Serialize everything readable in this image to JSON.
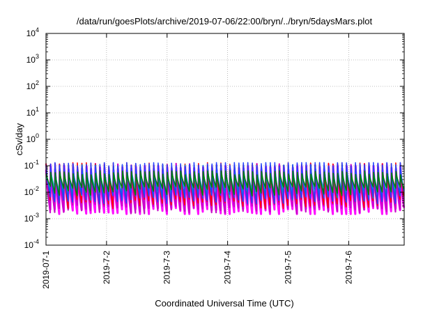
{
  "chart_data": {
    "type": "line",
    "title": "/data/run/goesPlots/archive/2019-07-06/22:00/bryn/../bryn/5daysMars.plot",
    "xlabel": "Coordinated Universal Time (UTC)",
    "ylabel": "cSv/day",
    "x_ticks": [
      "2019-07-1",
      "2019-7-2",
      "2019-7-3",
      "2019-7-4",
      "2019-7-5",
      "2019-7-6"
    ],
    "xlim": [
      "2019-07-01",
      "2019-07-06 22:00"
    ],
    "ylim": [
      0.0001,
      10000
    ],
    "yscale": "log",
    "y_ticks": [
      {
        "base": "10",
        "exp": "4"
      },
      {
        "base": "10",
        "exp": "3"
      },
      {
        "base": "10",
        "exp": "2"
      },
      {
        "base": "10",
        "exp": "1"
      },
      {
        "base": "10",
        "exp": "0"
      },
      {
        "base": "10",
        "exp": "-1"
      },
      {
        "base": "10",
        "exp": "-2"
      },
      {
        "base": "10",
        "exp": "-3"
      },
      {
        "base": "10",
        "exp": "-4"
      }
    ],
    "grid": true,
    "pattern": {
      "cycles_per_day": 13.5,
      "peak": 0.12,
      "trough_min": 0.0015
    },
    "series": [
      {
        "color": "#ff0000",
        "amp_lo": 0.004,
        "amp_hi": 0.12,
        "phase": 0.0
      },
      {
        "color": "#c800c8",
        "amp_lo": 0.0025,
        "amp_hi": 0.11,
        "phase": 0.02
      },
      {
        "color": "#ff00ff",
        "amp_lo": 0.0018,
        "amp_hi": 0.09,
        "phase": 0.04
      },
      {
        "color": "#2040ff",
        "amp_lo": 0.006,
        "amp_hi": 0.13,
        "phase": 0.01
      },
      {
        "color": "#00a0a0",
        "amp_lo": 0.008,
        "amp_hi": 0.1,
        "phase": 0.03
      },
      {
        "color": "#00c8c8",
        "amp_lo": 0.01,
        "amp_hi": 0.07,
        "phase": 0.05
      },
      {
        "color": "#008000",
        "amp_lo": 0.012,
        "amp_hi": 0.06,
        "phase": 0.06
      }
    ]
  }
}
